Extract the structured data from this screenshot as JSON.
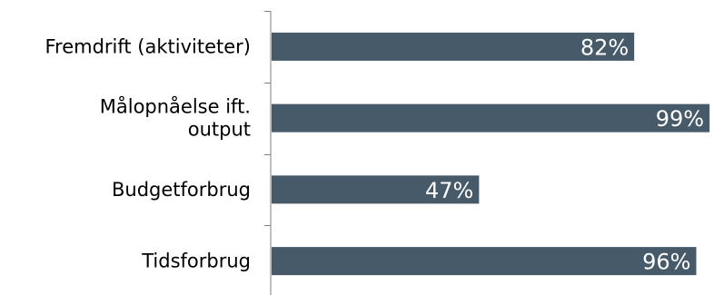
{
  "chart_data": {
    "type": "bar",
    "orientation": "horizontal",
    "categories": [
      [
        "Fremdrift (aktiviteter)"
      ],
      [
        "Målopnåelse ift.",
        "output"
      ],
      [
        "Budgetforbrug"
      ],
      [
        "Tidsforbrug"
      ]
    ],
    "values": [
      82,
      99,
      47,
      96
    ],
    "value_labels": [
      "82%",
      "99%",
      "47%",
      "96%"
    ],
    "xlim": [
      0,
      100
    ],
    "grid": false,
    "legend": "none",
    "colors": {
      "bar": "#465a69",
      "value_text": "#ffffff",
      "axis": "#7f7f7f"
    }
  }
}
